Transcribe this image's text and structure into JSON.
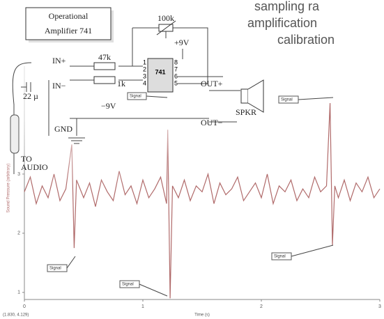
{
  "header": {
    "lines": [
      "sampling  ra",
      "amplification",
      "calibration"
    ]
  },
  "circuit": {
    "title_lines": [
      "Operational",
      "Amplifier 741"
    ],
    "chip": "741",
    "pins": [
      "1",
      "2",
      "3",
      "4",
      "5",
      "6",
      "7",
      "8"
    ],
    "pot": "100k",
    "plus_supply": "+9V",
    "minus_supply": "−9V",
    "r1": "47k",
    "r2": "1k",
    "in_plus": "IN+",
    "in_minus": "IN−",
    "cap": "22 µ",
    "out_plus": "OUT+",
    "out_minus": "OUT−",
    "speaker": "SPKR",
    "gnd": "GND",
    "audio_lines": [
      "TO",
      "AUDIO"
    ]
  },
  "signal_labels": [
    "Signal",
    "Signal",
    "Signal",
    "Signal",
    "Signal"
  ],
  "chart_data": {
    "type": "line",
    "x_label": "Time (s)",
    "y_label": "Sound Pressure (arbitrary)",
    "cursor": "(1.830, 4.129)",
    "color": "#b06a6a",
    "x": [
      0,
      0.05,
      0.1,
      0.15,
      0.2,
      0.25,
      0.3,
      0.35,
      0.4,
      0.42,
      0.44,
      0.5,
      0.55,
      0.6,
      0.65,
      0.7,
      0.75,
      0.8,
      0.85,
      0.9,
      0.95,
      1,
      1.05,
      1.1,
      1.15,
      1.2,
      1.21,
      1.23,
      1.25,
      1.3,
      1.35,
      1.4,
      1.45,
      1.5,
      1.55,
      1.6,
      1.65,
      1.7,
      1.75,
      1.8,
      1.85,
      1.9,
      1.95,
      2,
      2.05,
      2.1,
      2.15,
      2.2,
      2.25,
      2.3,
      2.35,
      2.4,
      2.45,
      2.5,
      2.55,
      2.58,
      2.6,
      2.62,
      2.65,
      2.7,
      2.75,
      2.8,
      2.85,
      2.9,
      2.95,
      3
    ],
    "values": [
      2.7,
      2.95,
      2.5,
      2.8,
      2.6,
      3.0,
      2.55,
      2.75,
      3.5,
      1.75,
      2.9,
      2.6,
      2.85,
      2.45,
      2.9,
      2.7,
      2.55,
      3.05,
      2.65,
      2.8,
      2.5,
      2.9,
      2.6,
      2.75,
      2.95,
      2.5,
      3.75,
      0.9,
      2.8,
      2.6,
      2.9,
      2.55,
      2.8,
      2.7,
      3.0,
      2.5,
      2.85,
      2.65,
      2.75,
      2.95,
      2.55,
      2.7,
      2.85,
      2.6,
      3.0,
      2.5,
      2.8,
      2.7,
      2.9,
      2.55,
      2.75,
      2.6,
      2.95,
      2.7,
      2.8,
      4.2,
      1.8,
      2.8,
      2.6,
      2.9,
      2.55,
      2.85,
      2.7,
      2.95,
      2.6,
      2.75
    ],
    "xlim": [
      0,
      3
    ],
    "ylim": [
      0.88,
      4.6
    ],
    "xticks": [
      0,
      1,
      2,
      3
    ],
    "yticks": [
      1,
      2,
      3
    ]
  }
}
